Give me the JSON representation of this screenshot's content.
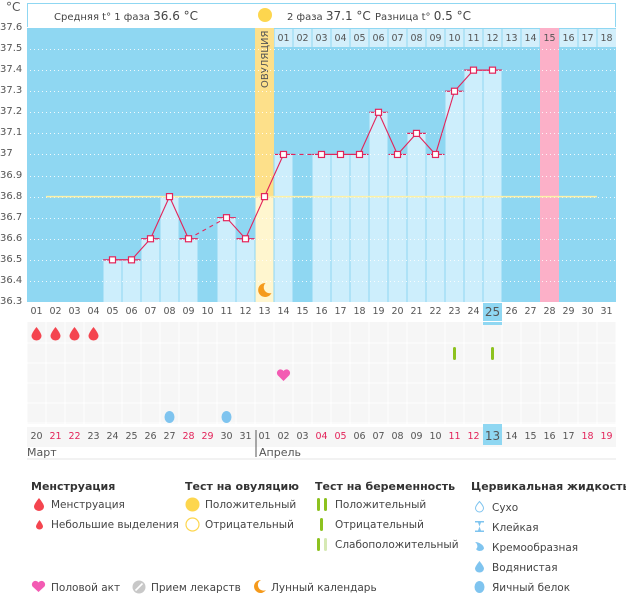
{
  "header": {
    "unit": "°C",
    "phase1_label": "Средняя t° 1 фаза",
    "phase1_value": "36.6 °C",
    "phase2_label": "2 фаза",
    "phase2_value": "37.1 °C",
    "diff_label": "Разница t°",
    "diff_value": "0.5 °C"
  },
  "chart_data": {
    "type": "bar",
    "title": "",
    "xlabel": "",
    "ylabel": "°C",
    "ylim": [
      36.3,
      37.6
    ],
    "yticks": [
      "37.6",
      "37.5",
      "37.4",
      "37.3",
      "37.2",
      "37.1",
      "37",
      "36.9",
      "36.8",
      "36.7",
      "36.6",
      "36.5",
      "36.4",
      "36.3"
    ],
    "cycle_days": [
      "01",
      "02",
      "03",
      "04",
      "05",
      "06",
      "07",
      "08",
      "09",
      "10",
      "11",
      "12",
      "13",
      "14",
      "15",
      "16",
      "17",
      "18",
      "19",
      "20",
      "21",
      "22",
      "23",
      "24",
      "25",
      "26",
      "27",
      "28",
      "29",
      "30",
      "31"
    ],
    "phase2_day_numbers": [
      "01",
      "02",
      "03",
      "04",
      "05",
      "06",
      "07",
      "08",
      "09",
      "10",
      "11",
      "12",
      "13",
      "14",
      "15",
      "16",
      "17",
      "18"
    ],
    "calendar_dates": [
      "20",
      "21",
      "22",
      "23",
      "24",
      "25",
      "26",
      "27",
      "28",
      "29",
      "30",
      "31",
      "01",
      "02",
      "03",
      "04",
      "05",
      "06",
      "07",
      "08",
      "09",
      "10",
      "11",
      "12",
      "13",
      "14",
      "15",
      "16",
      "17",
      "18",
      "19"
    ],
    "weekend_date_indices": [
      1,
      2,
      8,
      9,
      15,
      16,
      22,
      23,
      29,
      30
    ],
    "months": [
      "Март",
      "Апрель"
    ],
    "month_break_index": 12,
    "today_index": 24,
    "temperatures": [
      null,
      null,
      null,
      null,
      36.5,
      36.5,
      36.6,
      36.8,
      36.6,
      null,
      36.7,
      36.6,
      36.8,
      37.0,
      null,
      37.0,
      37.0,
      37.0,
      37.2,
      37.0,
      37.1,
      37.0,
      37.3,
      37.4,
      37.4,
      null,
      null,
      null,
      null,
      null,
      null
    ],
    "cover_line": 36.8,
    "ovulation_day_index": 12,
    "ovulation_label": "ОВУЛЯЦИЯ",
    "expected_period_day_index": 27,
    "moon_day_index": 12,
    "markers": {
      "menstruation_days": [
        0,
        1,
        2,
        3
      ],
      "pregnancy_test_negative_days": [
        22,
        24
      ],
      "intercourse_days": [
        13
      ],
      "cervical_egg_white_days": [
        7,
        10
      ]
    },
    "colors": {
      "background": "#8fd7f2",
      "bar": "#cdeefc",
      "line": "#e3245a",
      "cover_line": "#fdf1a6",
      "ovulation": "#fde9a2",
      "expected_period": "#fcb0c8"
    }
  },
  "legend": {
    "menstruation": {
      "title": "Менструация",
      "items": [
        "Менструация",
        "Небольшие выделения"
      ]
    },
    "ovulation_test": {
      "title": "Тест на овуляцию",
      "items": [
        "Положительный",
        "Отрицательный"
      ]
    },
    "pregnancy_test": {
      "title": "Тест на беременность",
      "items": [
        "Положительный",
        "Отрицательный",
        "Слабоположительный"
      ]
    },
    "cervical_fluid": {
      "title": "Цервикальная жидкость",
      "items": [
        "Сухо",
        "Клейкая",
        "Кремообразная",
        "Водянистая",
        "Яичный белок"
      ]
    },
    "other": [
      "Половой акт",
      "Прием лекарств",
      "Лунный календарь"
    ]
  }
}
